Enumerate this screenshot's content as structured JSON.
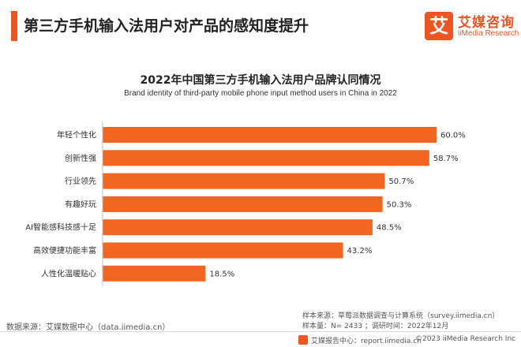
{
  "header": {
    "title": "第三方手机输入法用户对产品的感知度提升"
  },
  "logo": {
    "mark": "艾",
    "name_cn": "艾媒咨询",
    "name_en": "iiMedia Research"
  },
  "chart_data": {
    "type": "bar",
    "orientation": "horizontal",
    "title": "2022年中国第三方手机输入法用户品牌认同情况",
    "subtitle": "Brand identity of third-party mobile phone input method users in China in 2022",
    "categories": [
      "年轻个性化",
      "创新性强",
      "行业领先",
      "有趣好玩",
      "AI智能感科技感十足",
      "高效便捷功能丰富",
      "人性化温暖贴心"
    ],
    "values": [
      60.0,
      58.7,
      50.7,
      50.3,
      48.5,
      43.2,
      18.5
    ],
    "value_labels": [
      "60.0%",
      "58.7%",
      "50.7%",
      "50.3%",
      "48.5%",
      "43.2%",
      "18.5%"
    ],
    "unit": "%",
    "xlim": [
      0,
      60
    ],
    "color": "#f26622",
    "xlabel": "",
    "ylabel": "",
    "grid": false,
    "legend": "none"
  },
  "notes": {
    "sample_source": "样本来源：草莓派数据调查与计算系统（survey.iimedia.cn）",
    "sample_size": "样本量：N= 2433 ；调研时间：2022年12月",
    "data_source": "数据来源：艾媒数据中心（data.iimedia.cn）"
  },
  "footer": {
    "report_center": "艾媒报告中心：report.iimedia.cn",
    "copyright": "©2023  iiMedia Research  Inc"
  }
}
